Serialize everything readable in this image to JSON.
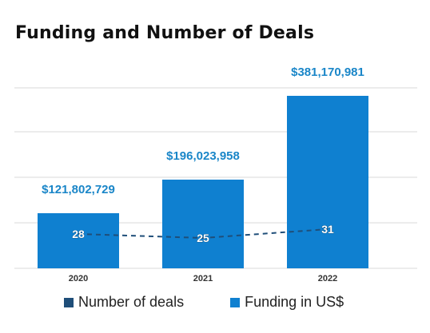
{
  "chart_data": {
    "type": "bar",
    "title": "Funding and Number of Deals",
    "categories": [
      "2020",
      "2021",
      "2022"
    ],
    "series": [
      {
        "name": "Funding in US$",
        "type": "bar",
        "values": [
          121802729,
          196023958,
          381170981
        ],
        "labels": [
          "$121,802,729",
          "$196,023,958",
          "$381,170,981"
        ],
        "color": "#0f80d0"
      },
      {
        "name": "Number of deals",
        "type": "line",
        "values": [
          28,
          25,
          31
        ],
        "labels": [
          "28",
          "25",
          "31"
        ],
        "color": "#1f4e79"
      }
    ],
    "grid": true,
    "legend_position": "bottom"
  },
  "colors": {
    "bar": "#0f80d0",
    "label": "#1a86c8",
    "line": "#1f4e79",
    "grid": "#d9d9d9",
    "axis_text": "#333333"
  }
}
